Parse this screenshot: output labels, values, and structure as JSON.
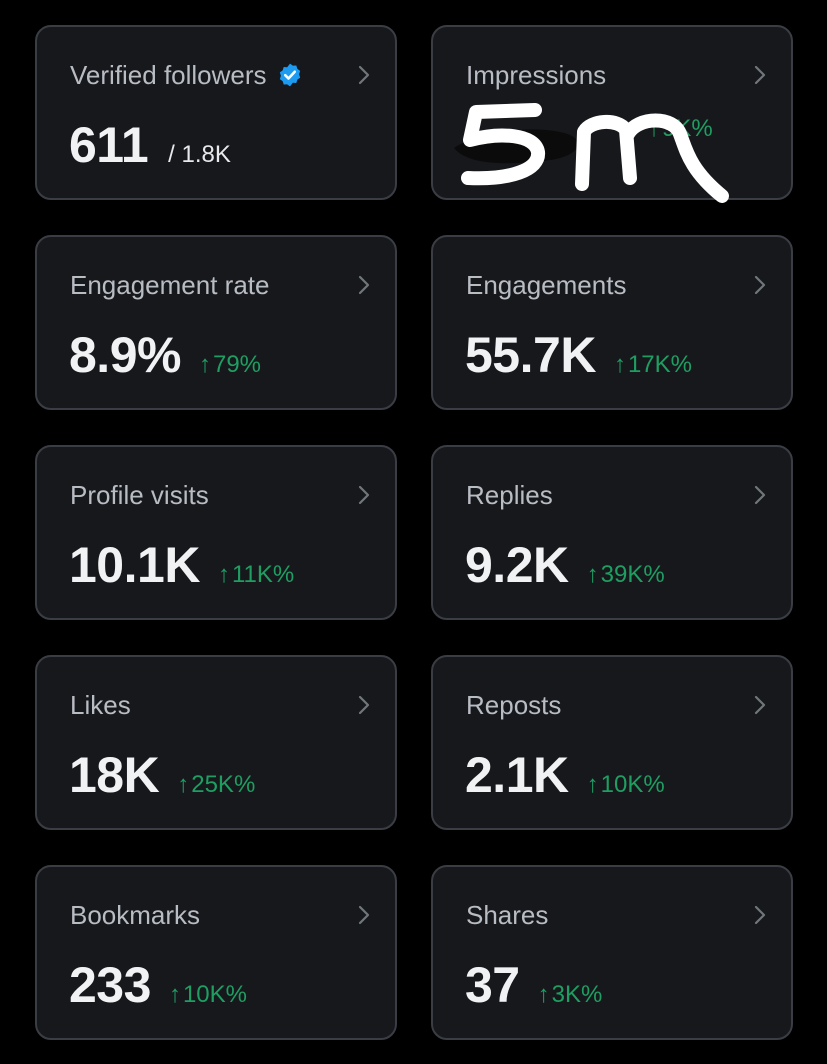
{
  "colors": {
    "background": "#000000",
    "card_background": "#16181c",
    "card_border": "#3a3d44",
    "label": "#b8bcc3",
    "value": "#f1f2f3",
    "positive_delta": "#1f9e62",
    "verified_badge": "#1d9bf0"
  },
  "icons": {
    "chevron": "chevron-right-icon",
    "verified": "verified-badge-icon",
    "delta_arrow": "up-arrow"
  },
  "cards": [
    {
      "label": "Verified followers",
      "value": "611",
      "secondary": "/ 1.8K",
      "verified": true
    },
    {
      "label": "Impressions",
      "value": "",
      "delta_arrow": "↑",
      "delta": "9K%",
      "obscured_by_scribble": "5m"
    },
    {
      "label": "Engagement rate",
      "value": "8.9%",
      "delta_arrow": "↑",
      "delta": "79%"
    },
    {
      "label": "Engagements",
      "value": "55.7K",
      "delta_arrow": "↑",
      "delta": "17K%"
    },
    {
      "label": "Profile visits",
      "value": "10.1K",
      "delta_arrow": "↑",
      "delta": "11K%"
    },
    {
      "label": "Replies",
      "value": "9.2K",
      "delta_arrow": "↑",
      "delta": "39K%"
    },
    {
      "label": "Likes",
      "value": "18K",
      "delta_arrow": "↑",
      "delta": "25K%"
    },
    {
      "label": "Reposts",
      "value": "2.1K",
      "delta_arrow": "↑",
      "delta": "10K%"
    },
    {
      "label": "Bookmarks",
      "value": "233",
      "delta_arrow": "↑",
      "delta": "10K%"
    },
    {
      "label": "Shares",
      "value": "37",
      "delta_arrow": "↑",
      "delta": "3K%"
    }
  ]
}
